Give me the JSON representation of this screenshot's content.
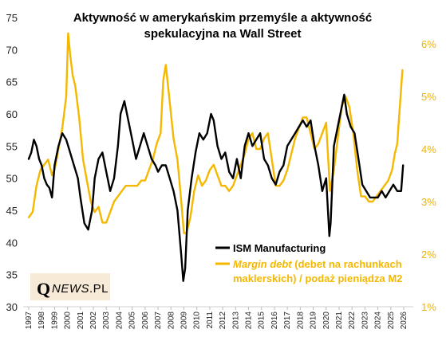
{
  "chart_data": {
    "type": "line",
    "title_lines": [
      "Aktywność w amerykańskim przemyśle a aktywność",
      "spekulacyjna na Wall Street"
    ],
    "y_left": {
      "min": 30,
      "max": 75,
      "ticks": [
        "30",
        "35",
        "40",
        "45",
        "50",
        "55",
        "60",
        "65",
        "70",
        "75"
      ]
    },
    "y_right": {
      "min": 1,
      "max": 6.5,
      "ticks": [
        "1%",
        "2%",
        "3%",
        "4%",
        "5%",
        "6%"
      ]
    },
    "x_ticks": [
      "1997",
      "1998",
      "1999",
      "2000",
      "2001",
      "2002",
      "2003",
      "2004",
      "2005",
      "2006",
      "2007",
      "2008",
      "2009",
      "2010",
      "2011",
      "2012",
      "2013",
      "2014",
      "2015",
      "2016",
      "2017",
      "2018",
      "2019",
      "2020",
      "2021",
      "2022",
      "2023",
      "2024",
      "2025",
      "2026"
    ],
    "series": [
      {
        "name": "ISM Manufacturing",
        "axis": "left",
        "color": "#000000",
        "x": [
          1997.0,
          1997.2,
          1997.4,
          1997.6,
          1997.8,
          1998.0,
          1998.2,
          1998.4,
          1998.6,
          1998.8,
          1999.0,
          1999.3,
          1999.6,
          1999.9,
          2000.2,
          2000.5,
          2000.8,
          2001.0,
          2001.3,
          2001.6,
          2001.9,
          2002.1,
          2002.4,
          2002.7,
          2003.0,
          2003.3,
          2003.6,
          2003.9,
          2004.1,
          2004.4,
          2004.7,
          2005.0,
          2005.3,
          2005.6,
          2005.9,
          2006.2,
          2006.5,
          2006.8,
          2007.0,
          2007.3,
          2007.6,
          2007.9,
          2008.2,
          2008.5,
          2008.8,
          2008.95,
          2009.1,
          2009.3,
          2009.6,
          2009.9,
          2010.2,
          2010.5,
          2010.8,
          2011.1,
          2011.3,
          2011.6,
          2011.9,
          2012.2,
          2012.5,
          2012.8,
          2013.1,
          2013.4,
          2013.7,
          2014.0,
          2014.3,
          2014.6,
          2014.9,
          2015.2,
          2015.5,
          2015.8,
          2016.1,
          2016.4,
          2016.7,
          2017.0,
          2017.3,
          2017.6,
          2017.9,
          2018.2,
          2018.5,
          2018.8,
          2019.1,
          2019.4,
          2019.7,
          2020.0,
          2020.25,
          2020.35,
          2020.6,
          2020.9,
          2021.2,
          2021.4,
          2021.6,
          2021.9,
          2022.2,
          2022.5,
          2022.8,
          2023.1,
          2023.4,
          2023.7,
          2024.0,
          2024.3,
          2024.6,
          2024.9,
          2025.2,
          2025.5,
          2025.8,
          2025.95
        ],
        "y": [
          53,
          54,
          56,
          55,
          53,
          52,
          50,
          49,
          48.5,
          47,
          52,
          55,
          57,
          56,
          54,
          52,
          50,
          47,
          43,
          42,
          45,
          50,
          53,
          54,
          51,
          48,
          50,
          55,
          60,
          62,
          59,
          56,
          53,
          55,
          57,
          55,
          53,
          52,
          51,
          52,
          52,
          50,
          48,
          45,
          38,
          34,
          36,
          45,
          50,
          54,
          57,
          56,
          57,
          60,
          59,
          55,
          53,
          54,
          51,
          50,
          53,
          50,
          55,
          57,
          55,
          56,
          57,
          53,
          52,
          50,
          49,
          51,
          52,
          55,
          56,
          57,
          58,
          59,
          58,
          59,
          55,
          52,
          48,
          50,
          41,
          43,
          55,
          58,
          61,
          63,
          60,
          58,
          57,
          53,
          49,
          48,
          47,
          47,
          47,
          48,
          47,
          48,
          49,
          48,
          48,
          52
        ]
      },
      {
        "name": "Margin debt (debet na rachunkach maklerskich) / podaż pieniądza M2",
        "axis": "right",
        "color": "#f5b800",
        "x": [
          1997.0,
          1997.3,
          1997.6,
          1997.9,
          1998.2,
          1998.5,
          1998.8,
          1999.0,
          1999.3,
          1999.6,
          1999.9,
          2000.05,
          2000.2,
          2000.4,
          2000.6,
          2000.9,
          2001.2,
          2001.5,
          2001.8,
          2002.1,
          2002.4,
          2002.7,
          2003.0,
          2003.3,
          2003.6,
          2003.9,
          2004.2,
          2004.5,
          2004.8,
          2005.1,
          2005.4,
          2005.7,
          2006.0,
          2006.3,
          2006.6,
          2006.9,
          2007.2,
          2007.4,
          2007.6,
          2007.9,
          2008.2,
          2008.5,
          2008.8,
          2009.0,
          2009.2,
          2009.5,
          2009.8,
          2010.1,
          2010.4,
          2010.7,
          2011.0,
          2011.3,
          2011.6,
          2011.9,
          2012.2,
          2012.5,
          2012.8,
          2013.1,
          2013.4,
          2013.7,
          2014.0,
          2014.3,
          2014.6,
          2014.9,
          2015.2,
          2015.5,
          2015.8,
          2016.1,
          2016.4,
          2016.7,
          2017.0,
          2017.3,
          2017.6,
          2017.9,
          2018.2,
          2018.5,
          2018.8,
          2019.1,
          2019.4,
          2019.7,
          2020.0,
          2020.3,
          2020.6,
          2020.9,
          2021.2,
          2021.5,
          2021.8,
          2022.1,
          2022.4,
          2022.7,
          2023.0,
          2023.3,
          2023.6,
          2023.9,
          2024.2,
          2024.5,
          2024.8,
          2025.1,
          2025.3,
          2025.5,
          2025.7,
          2025.9
        ],
        "y": [
          2.7,
          2.8,
          3.3,
          3.6,
          3.7,
          3.8,
          3.5,
          3.6,
          4.0,
          4.4,
          5.0,
          6.2,
          5.8,
          5.4,
          5.2,
          4.6,
          3.8,
          3.4,
          3.0,
          2.8,
          2.9,
          2.6,
          2.6,
          2.8,
          3.0,
          3.1,
          3.2,
          3.3,
          3.3,
          3.3,
          3.3,
          3.4,
          3.4,
          3.6,
          3.8,
          4.1,
          4.3,
          5.3,
          5.6,
          4.9,
          4.2,
          3.8,
          3.0,
          2.4,
          2.4,
          2.7,
          3.2,
          3.5,
          3.3,
          3.4,
          3.6,
          3.7,
          3.5,
          3.3,
          3.3,
          3.2,
          3.3,
          3.5,
          3.7,
          3.9,
          4.2,
          4.3,
          4.0,
          4.0,
          4.2,
          4.3,
          3.8,
          3.3,
          3.3,
          3.4,
          3.6,
          3.9,
          4.2,
          4.4,
          4.6,
          4.6,
          4.3,
          4.0,
          4.1,
          4.3,
          4.5,
          3.2,
          3.6,
          4.2,
          4.8,
          5.0,
          4.8,
          4.3,
          3.6,
          3.1,
          3.1,
          3.0,
          3.0,
          3.1,
          3.2,
          3.3,
          3.4,
          3.6,
          3.9,
          4.1,
          4.8,
          5.5
        ]
      }
    ],
    "legend": {
      "placement": "bottom-right",
      "ism_label": "ISM Manufacturing",
      "margin_label_italic": "Margin debt",
      "margin_label_rest_line1": " (debet na rachunkach",
      "margin_label_line2": "maklerskich) / podaż pieniądza M2"
    }
  },
  "logo": {
    "q": "Q",
    "news": "NEWS",
    "suffix": ".PL"
  }
}
